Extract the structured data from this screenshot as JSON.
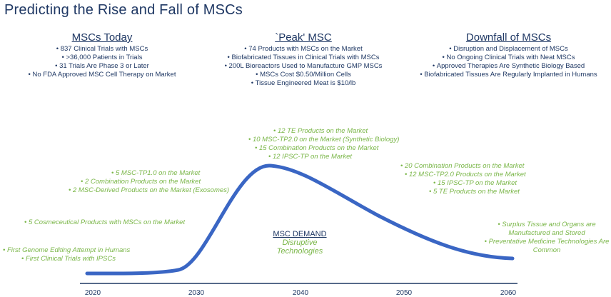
{
  "title": "Predicting the Rise and Fall of MSCs",
  "columns": [
    {
      "heading": "MSCs Today",
      "items": [
        "837 Clinical Trials with MSCs",
        ">36,000 Patients in Trials",
        "31 Trials Are Phase 3 or Later",
        "No FDA Approved MSC Cell Therapy on Market"
      ]
    },
    {
      "heading": "`Peak' MSC",
      "items": [
        "74 Products with MSCs on the Market",
        "Biofabricated Tissues in Clinical Trials with MSCs",
        "200L Bioreactors Used to Manufacture GMP MSCs",
        "MSCs Cost $0.50/Million Cells",
        "Tissue Engineered Meat is $10/lb"
      ]
    },
    {
      "heading": "Downfall of MSCs",
      "items": [
        "Disruption and Displacement of MSCs",
        "No Ongoing Clinical Trials with Neat MSCs",
        "Approved Therapies Are Synthetic Biology Based",
        "Biofabricated Tissues Are Regularly Implanted in Humans"
      ]
    }
  ],
  "annotations": {
    "early": [
      "First Genome Editing Attempt in Humans",
      "First Clinical Trials with IPSCs"
    ],
    "cosmeceutical": [
      "5 Cosmeceutical Products with MSCs on the Market"
    ],
    "rise": [
      "5 MSC-TP1.0 on the Market",
      "2 Combination Products on the Market",
      "2 MSC-Derived Products on the Market (Exosomes)"
    ],
    "peak": [
      "12 TE Products on the Market",
      "10 MSC-TP2.0 on the Market (Synthetic Biology)",
      "15  Combination Products on the Market",
      "12 IPSC-TP on the Market"
    ],
    "decline": [
      "20 Combination Products on the Market",
      "12 MSC-TP2.0 Products on the Market",
      "15 IPSC-TP on the Market",
      "5 TE Products on the Market"
    ],
    "late": [
      "Surplus Tissue and Organs are",
      "Manufactured and Stored",
      "Preventative Medicine Technologies Are",
      "Common"
    ]
  },
  "demand": {
    "label": "MSC DEMAND",
    "sublabel": "Disruptive Technologies"
  },
  "axis": {
    "years": [
      "2020",
      "2030",
      "2040",
      "2050",
      "2060"
    ]
  },
  "colors": {
    "navy": "#1f3864",
    "curve": "#3a66c4",
    "green": "#7ab648"
  }
}
